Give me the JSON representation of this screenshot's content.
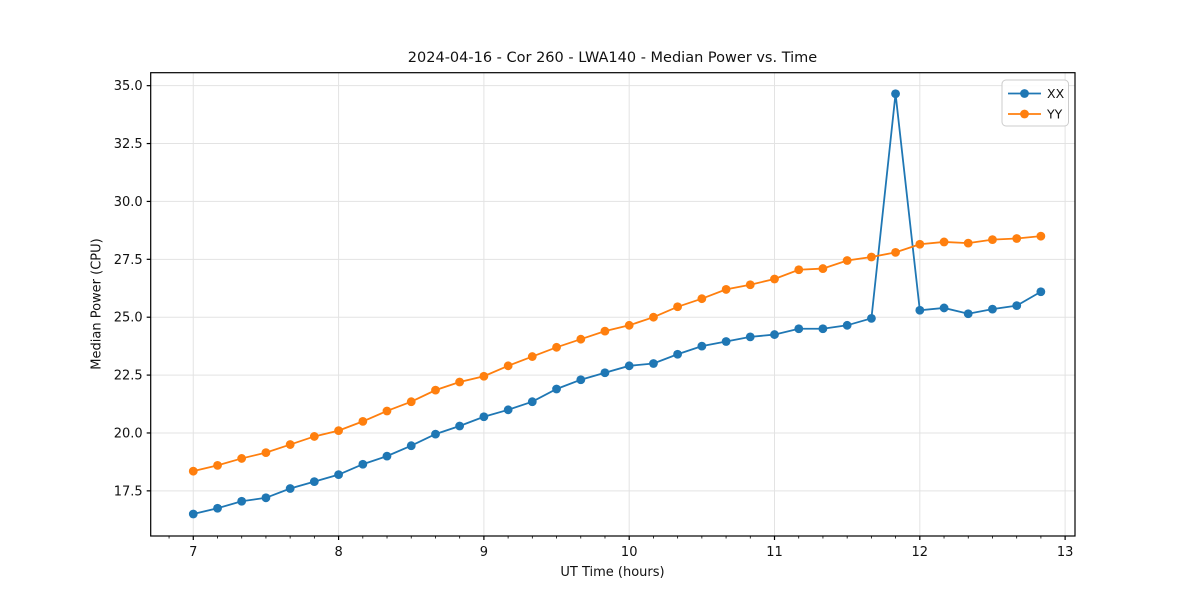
{
  "chart_data": {
    "type": "line",
    "title": "2024-04-16 - Cor 260 - LWA140 - Median Power vs. Time",
    "xlabel": "UT Time (hours)",
    "ylabel": "Median Power (CPU)",
    "xlim": [
      6.707,
      13.068
    ],
    "ylim": [
      15.55,
      35.56
    ],
    "xticks": [
      7,
      8,
      9,
      10,
      11,
      12,
      13
    ],
    "xtick_labels": [
      "7",
      "8",
      "9",
      "10",
      "11",
      "12",
      "13"
    ],
    "yticks": [
      17.5,
      20.0,
      22.5,
      25.0,
      27.5,
      30.0,
      32.5,
      35.0
    ],
    "ytick_labels": [
      "17.5",
      "20.0",
      "22.5",
      "25.0",
      "27.5",
      "30.0",
      "32.5",
      "35.0"
    ],
    "x_minor_step": 0.166667,
    "grid": true,
    "legend_position": "upper right",
    "background_color": "#ffffff",
    "x": [
      7.0,
      7.167,
      7.333,
      7.5,
      7.667,
      7.833,
      8.0,
      8.167,
      8.333,
      8.5,
      8.667,
      8.833,
      9.0,
      9.167,
      9.333,
      9.5,
      9.667,
      9.833,
      10.0,
      10.167,
      10.333,
      10.5,
      10.667,
      10.833,
      11.0,
      11.167,
      11.333,
      11.5,
      11.667,
      11.833,
      12.0,
      12.167,
      12.333,
      12.5,
      12.667,
      12.833
    ],
    "series": [
      {
        "name": "XX",
        "color": "#1f77b4",
        "marker": "circle",
        "values": [
          16.5,
          16.75,
          17.05,
          17.2,
          17.6,
          17.9,
          18.2,
          18.65,
          19.0,
          19.45,
          19.95,
          20.3,
          20.7,
          21.0,
          21.35,
          21.9,
          22.3,
          22.6,
          22.9,
          23.0,
          23.4,
          23.75,
          23.95,
          24.15,
          24.25,
          24.5,
          24.5,
          24.65,
          24.95,
          34.65,
          25.3,
          25.4,
          25.15,
          25.35,
          25.5,
          26.1
        ]
      },
      {
        "name": "YY",
        "color": "#ff7f0e",
        "marker": "circle",
        "values": [
          18.35,
          18.6,
          18.9,
          19.15,
          19.5,
          19.85,
          20.1,
          20.5,
          20.95,
          21.35,
          21.85,
          22.2,
          22.45,
          22.9,
          23.3,
          23.7,
          24.05,
          24.4,
          24.65,
          25.0,
          25.45,
          25.8,
          26.2,
          26.4,
          26.65,
          27.05,
          27.1,
          27.45,
          27.6,
          27.8,
          28.15,
          28.25,
          28.2,
          28.35,
          28.4,
          28.5
        ]
      }
    ]
  }
}
